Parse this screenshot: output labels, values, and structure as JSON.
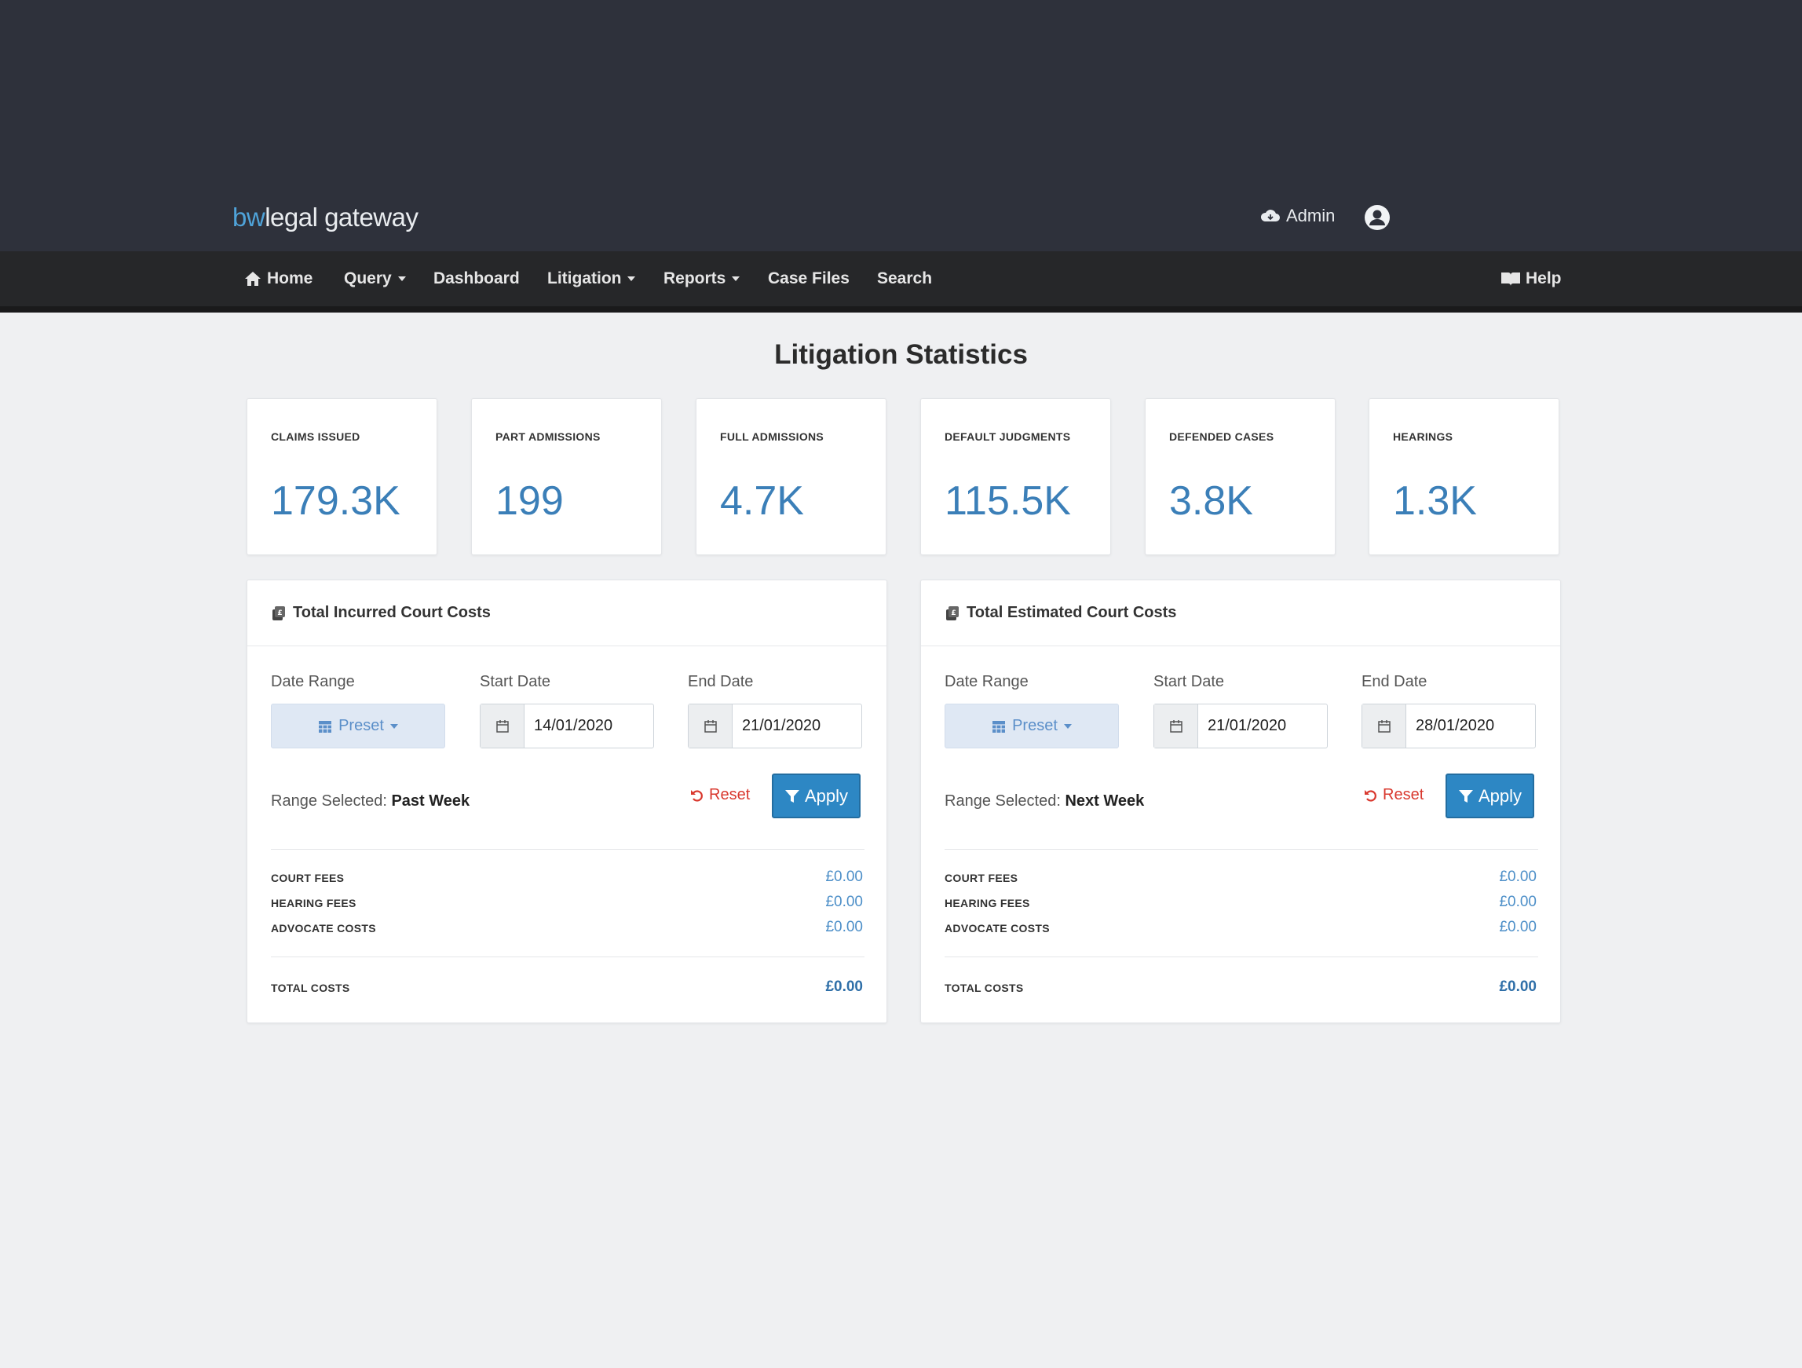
{
  "header": {
    "brand_prefix": "bw",
    "brand_rest": "legal gateway",
    "admin_label": "Admin"
  },
  "nav": {
    "items": [
      {
        "label": "Home"
      },
      {
        "label": "Query"
      },
      {
        "label": "Dashboard"
      },
      {
        "label": "Litigation"
      },
      {
        "label": "Reports"
      },
      {
        "label": "Case Files"
      },
      {
        "label": "Search"
      }
    ],
    "help_label": "Help"
  },
  "page": {
    "title": "Litigation Statistics"
  },
  "stats": [
    {
      "label": "CLAIMS ISSUED",
      "value": "179.3K"
    },
    {
      "label": "PART ADMISSIONS",
      "value": "199"
    },
    {
      "label": "FULL ADMISSIONS",
      "value": "4.7K"
    },
    {
      "label": "DEFAULT JUDGMENTS",
      "value": "115.5K"
    },
    {
      "label": "DEFENDED CASES",
      "value": "3.8K"
    },
    {
      "label": "HEARINGS",
      "value": "1.3K"
    }
  ],
  "panels": [
    {
      "title": "Total Incurred Court Costs",
      "date_range_label": "Date Range",
      "start_date_label": "Start Date",
      "end_date_label": "End Date",
      "preset_label": "Preset",
      "start_date": "14/01/2020",
      "end_date": "21/01/2020",
      "range_selected_label": "Range Selected:",
      "range_selected_value": "Past Week",
      "reset_label": "Reset",
      "apply_label": "Apply",
      "costs": [
        {
          "label": "COURT FEES",
          "value": "£0.00"
        },
        {
          "label": "HEARING FEES",
          "value": "£0.00"
        },
        {
          "label": "ADVOCATE COSTS",
          "value": "£0.00"
        }
      ],
      "total_label": "TOTAL COSTS",
      "total_value": "£0.00"
    },
    {
      "title": "Total Estimated Court Costs",
      "date_range_label": "Date Range",
      "start_date_label": "Start Date",
      "end_date_label": "End Date",
      "preset_label": "Preset",
      "start_date": "21/01/2020",
      "end_date": "28/01/2020",
      "range_selected_label": "Range Selected:",
      "range_selected_value": "Next Week",
      "reset_label": "Reset",
      "apply_label": "Apply",
      "costs": [
        {
          "label": "COURT FEES",
          "value": "£0.00"
        },
        {
          "label": "HEARING FEES",
          "value": "£0.00"
        },
        {
          "label": "ADVOCATE COSTS",
          "value": "£0.00"
        }
      ],
      "total_label": "TOTAL COSTS",
      "total_value": "£0.00"
    }
  ],
  "colors": {
    "header_bg": "#2e313b",
    "nav_bg": "#262729",
    "accent": "#3b7fb8",
    "apply_bg": "#2d87c4",
    "reset": "#d9382e"
  }
}
